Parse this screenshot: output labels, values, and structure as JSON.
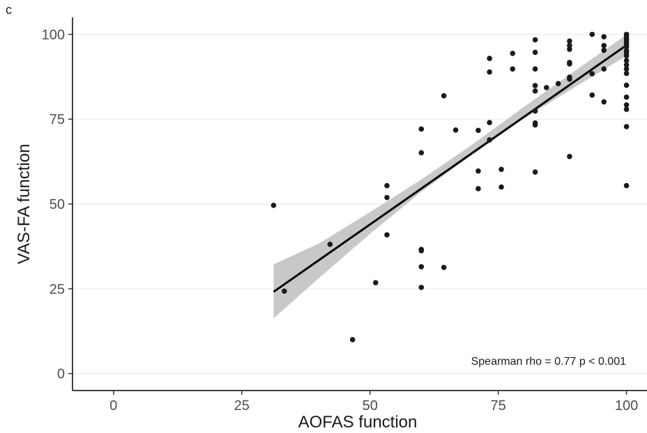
{
  "panel_label": "c",
  "chart_data": {
    "type": "scatter",
    "title": "",
    "xlabel": "AOFAS function",
    "ylabel": "VAS-FA function",
    "xlim": [
      -8,
      104
    ],
    "ylim": [
      -5,
      105
    ],
    "x_ticks": [
      0,
      25,
      50,
      75,
      100
    ],
    "y_ticks": [
      0,
      25,
      50,
      75,
      100
    ],
    "grid": "horizontal",
    "annotation": "Spearman rho = 0.77 p < 0.001",
    "colors": {
      "points": "#1a1a1a",
      "fit_line": "#000000",
      "confidence_band": "#bebebe",
      "grid": "#ebebeb"
    },
    "points": [
      {
        "x": 31.2,
        "y": 49.6
      },
      {
        "x": 33.3,
        "y": 24.3
      },
      {
        "x": 42.2,
        "y": 38.1
      },
      {
        "x": 46.6,
        "y": 10.0
      },
      {
        "x": 51.1,
        "y": 26.8
      },
      {
        "x": 53.3,
        "y": 55.4
      },
      {
        "x": 53.3,
        "y": 51.9
      },
      {
        "x": 53.3,
        "y": 40.9
      },
      {
        "x": 60.0,
        "y": 72.1
      },
      {
        "x": 60.0,
        "y": 65.1
      },
      {
        "x": 60.0,
        "y": 36.6
      },
      {
        "x": 60.0,
        "y": 36.2
      },
      {
        "x": 60.0,
        "y": 31.5
      },
      {
        "x": 60.0,
        "y": 25.4
      },
      {
        "x": 64.4,
        "y": 81.9
      },
      {
        "x": 64.4,
        "y": 31.3
      },
      {
        "x": 66.7,
        "y": 71.8
      },
      {
        "x": 71.1,
        "y": 71.7
      },
      {
        "x": 71.1,
        "y": 59.7
      },
      {
        "x": 71.1,
        "y": 54.5
      },
      {
        "x": 73.3,
        "y": 92.9
      },
      {
        "x": 73.3,
        "y": 88.9
      },
      {
        "x": 73.3,
        "y": 74.0
      },
      {
        "x": 73.3,
        "y": 68.9
      },
      {
        "x": 75.6,
        "y": 60.2
      },
      {
        "x": 75.6,
        "y": 55.0
      },
      {
        "x": 77.8,
        "y": 94.4
      },
      {
        "x": 77.8,
        "y": 89.8
      },
      {
        "x": 82.2,
        "y": 98.4
      },
      {
        "x": 82.2,
        "y": 94.7
      },
      {
        "x": 82.2,
        "y": 89.8
      },
      {
        "x": 82.2,
        "y": 84.9
      },
      {
        "x": 82.2,
        "y": 83.3
      },
      {
        "x": 82.2,
        "y": 77.4
      },
      {
        "x": 82.2,
        "y": 73.9
      },
      {
        "x": 82.2,
        "y": 73.3
      },
      {
        "x": 82.2,
        "y": 59.4
      },
      {
        "x": 84.4,
        "y": 84.3
      },
      {
        "x": 86.7,
        "y": 85.5
      },
      {
        "x": 88.9,
        "y": 98.0
      },
      {
        "x": 88.9,
        "y": 96.7
      },
      {
        "x": 88.9,
        "y": 95.6
      },
      {
        "x": 88.9,
        "y": 91.7
      },
      {
        "x": 88.9,
        "y": 91.3
      },
      {
        "x": 88.9,
        "y": 87.4
      },
      {
        "x": 88.9,
        "y": 86.8
      },
      {
        "x": 88.9,
        "y": 64.0
      },
      {
        "x": 93.3,
        "y": 100.0
      },
      {
        "x": 93.3,
        "y": 88.4
      },
      {
        "x": 93.3,
        "y": 82.1
      },
      {
        "x": 95.6,
        "y": 99.3
      },
      {
        "x": 95.6,
        "y": 96.7
      },
      {
        "x": 95.6,
        "y": 95.3
      },
      {
        "x": 95.6,
        "y": 89.8
      },
      {
        "x": 95.6,
        "y": 80.1
      },
      {
        "x": 100.0,
        "y": 100.0
      },
      {
        "x": 100.0,
        "y": 99.2
      },
      {
        "x": 100.0,
        "y": 98.6
      },
      {
        "x": 100.0,
        "y": 97.9
      },
      {
        "x": 100.0,
        "y": 97.1
      },
      {
        "x": 100.0,
        "y": 96.3
      },
      {
        "x": 100.0,
        "y": 95.2
      },
      {
        "x": 100.0,
        "y": 94.5
      },
      {
        "x": 100.0,
        "y": 93.7
      },
      {
        "x": 100.0,
        "y": 92.3
      },
      {
        "x": 100.0,
        "y": 91.0
      },
      {
        "x": 100.0,
        "y": 89.8
      },
      {
        "x": 100.0,
        "y": 88.5
      },
      {
        "x": 100.0,
        "y": 85.0
      },
      {
        "x": 100.0,
        "y": 81.5
      },
      {
        "x": 100.0,
        "y": 79.2
      },
      {
        "x": 100.0,
        "y": 77.9
      },
      {
        "x": 100.0,
        "y": 72.8
      },
      {
        "x": 100.0,
        "y": 55.4
      }
    ],
    "fit_line": {
      "x": [
        31.2,
        100.0
      ],
      "y": [
        24.1,
        96.8
      ]
    },
    "confidence_band": {
      "x": [
        31.2,
        40,
        50,
        60,
        70,
        80,
        90,
        100
      ],
      "lower": [
        16.3,
        28.1,
        41.2,
        53.6,
        64.6,
        75.2,
        84.5,
        93.7
      ],
      "upper": [
        32.2,
        38.3,
        47.6,
        57.2,
        67.6,
        78.6,
        89.3,
        99.9
      ]
    }
  }
}
